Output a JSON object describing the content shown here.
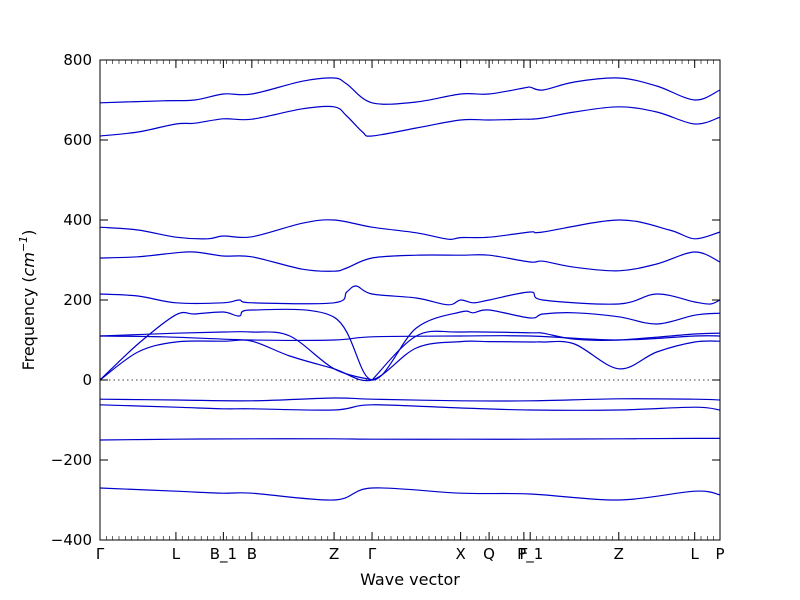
{
  "chart_data": {
    "type": "line",
    "title": "",
    "xlabel": "Wave vector",
    "ylabel_prefix": "Frequency (",
    "ylabel_math": "cm",
    "ylabel_exp": "−1",
    "ylabel_suffix": ")",
    "ylim": [
      -400,
      800
    ],
    "yticks": [
      -400,
      -200,
      0,
      200,
      400,
      600,
      800
    ],
    "xlim": [
      0,
      9.8
    ],
    "xticks": [
      {
        "pos": 0.0,
        "label": "Γ"
      },
      {
        "pos": 1.2,
        "label": "L"
      },
      {
        "pos": 1.95,
        "label": "B_1"
      },
      {
        "pos": 2.4,
        "label": "B"
      },
      {
        "pos": 3.7,
        "label": "Z"
      },
      {
        "pos": 4.3,
        "label": "Γ"
      },
      {
        "pos": 5.7,
        "label": "X"
      },
      {
        "pos": 6.15,
        "label": "Q"
      },
      {
        "pos": 6.7,
        "label": "F"
      },
      {
        "pos": 6.8,
        "label": "P_1"
      },
      {
        "pos": 8.2,
        "label": "Z"
      },
      {
        "pos": 9.4,
        "label": "L"
      },
      {
        "pos": 9.8,
        "label": "P"
      }
    ],
    "zero_line": true,
    "series": [
      {
        "values": [
          [
            0,
            693
          ],
          [
            1,
            698
          ],
          [
            1.5,
            700
          ],
          [
            1.95,
            715
          ],
          [
            2.4,
            715
          ],
          [
            3.2,
            747
          ],
          [
            3.7,
            755
          ],
          [
            3.9,
            740
          ],
          [
            4.3,
            693
          ],
          [
            5.0,
            695
          ],
          [
            5.7,
            715
          ],
          [
            6.15,
            715
          ],
          [
            6.7,
            730
          ],
          [
            6.8,
            732
          ],
          [
            7.0,
            725
          ],
          [
            7.5,
            745
          ],
          [
            8.2,
            755
          ],
          [
            8.8,
            735
          ],
          [
            9.4,
            700
          ],
          [
            9.8,
            725
          ]
        ]
      },
      {
        "values": [
          [
            0,
            610
          ],
          [
            0.6,
            620
          ],
          [
            1.2,
            640
          ],
          [
            1.5,
            642
          ],
          [
            1.95,
            653
          ],
          [
            2.4,
            652
          ],
          [
            3.2,
            678
          ],
          [
            3.7,
            683
          ],
          [
            3.9,
            660
          ],
          [
            4.15,
            620
          ],
          [
            4.3,
            610
          ],
          [
            5.0,
            630
          ],
          [
            5.7,
            650
          ],
          [
            6.15,
            650
          ],
          [
            6.7,
            652
          ],
          [
            6.8,
            652
          ],
          [
            7.0,
            655
          ],
          [
            7.5,
            670
          ],
          [
            8.2,
            683
          ],
          [
            8.8,
            670
          ],
          [
            9.4,
            640
          ],
          [
            9.8,
            657
          ]
        ]
      },
      {
        "values": [
          [
            0,
            382
          ],
          [
            0.6,
            375
          ],
          [
            1.2,
            357
          ],
          [
            1.7,
            353
          ],
          [
            1.95,
            360
          ],
          [
            2.4,
            358
          ],
          [
            3.2,
            392
          ],
          [
            3.7,
            400
          ],
          [
            4.3,
            382
          ],
          [
            5.0,
            368
          ],
          [
            5.5,
            352
          ],
          [
            5.7,
            356
          ],
          [
            6.15,
            357
          ],
          [
            6.8,
            370
          ],
          [
            7.0,
            370
          ],
          [
            8.2,
            400
          ],
          [
            9.0,
            375
          ],
          [
            9.4,
            353
          ],
          [
            9.8,
            370
          ]
        ]
      },
      {
        "values": [
          [
            0,
            305
          ],
          [
            0.6,
            308
          ],
          [
            1.2,
            318
          ],
          [
            1.5,
            320
          ],
          [
            1.95,
            310
          ],
          [
            2.4,
            308
          ],
          [
            3.2,
            277
          ],
          [
            3.7,
            272
          ],
          [
            3.9,
            280
          ],
          [
            4.3,
            305
          ],
          [
            5.0,
            312
          ],
          [
            5.7,
            312
          ],
          [
            6.15,
            312
          ],
          [
            6.8,
            295
          ],
          [
            7.0,
            297
          ],
          [
            7.5,
            282
          ],
          [
            8.2,
            273
          ],
          [
            8.8,
            290
          ],
          [
            9.4,
            320
          ],
          [
            9.8,
            295
          ]
        ]
      },
      {
        "values": [
          [
            0,
            215
          ],
          [
            0.6,
            210
          ],
          [
            1.2,
            193
          ],
          [
            1.95,
            193
          ],
          [
            2.2,
            200
          ],
          [
            2.4,
            193
          ],
          [
            3.7,
            193
          ],
          [
            3.9,
            220
          ],
          [
            4.05,
            235
          ],
          [
            4.3,
            215
          ],
          [
            5.0,
            205
          ],
          [
            5.5,
            188
          ],
          [
            5.7,
            200
          ],
          [
            5.9,
            193
          ],
          [
            6.15,
            200
          ],
          [
            6.8,
            220
          ],
          [
            7.0,
            200
          ],
          [
            8.2,
            190
          ],
          [
            8.8,
            215
          ],
          [
            9.4,
            195
          ],
          [
            9.65,
            190
          ],
          [
            9.8,
            200
          ]
        ]
      },
      {
        "values": [
          [
            0,
            0
          ],
          [
            0.6,
            90
          ],
          [
            1.2,
            163
          ],
          [
            1.5,
            165
          ],
          [
            1.95,
            170
          ],
          [
            2.2,
            160
          ],
          [
            2.4,
            175
          ],
          [
            3.7,
            157
          ],
          [
            4.3,
            0
          ],
          [
            5.0,
            130
          ],
          [
            5.7,
            170
          ],
          [
            5.9,
            168
          ],
          [
            6.15,
            175
          ],
          [
            6.8,
            155
          ],
          [
            7.0,
            165
          ],
          [
            7.5,
            168
          ],
          [
            8.2,
            158
          ],
          [
            8.8,
            140
          ],
          [
            9.4,
            162
          ],
          [
            9.8,
            167
          ]
        ]
      },
      {
        "values": [
          [
            0,
            0
          ],
          [
            0.6,
            70
          ],
          [
            1.2,
            95
          ],
          [
            1.95,
            97
          ],
          [
            2.4,
            97
          ],
          [
            3.0,
            60
          ],
          [
            3.7,
            28
          ],
          [
            4.3,
            0
          ],
          [
            5.0,
            80
          ],
          [
            5.7,
            96
          ],
          [
            6.15,
            96
          ],
          [
            6.8,
            95
          ],
          [
            7.0,
            95
          ],
          [
            7.5,
            90
          ],
          [
            8.2,
            28
          ],
          [
            8.8,
            70
          ],
          [
            9.4,
            95
          ],
          [
            9.8,
            97
          ]
        ]
      },
      {
        "values": [
          [
            0,
            110
          ],
          [
            1.2,
            117
          ],
          [
            1.95,
            120
          ],
          [
            2.4,
            120
          ],
          [
            3.0,
            110
          ],
          [
            3.7,
            28
          ],
          [
            4.3,
            0
          ]
        ]
      },
      {
        "values": [
          [
            4.3,
            0
          ],
          [
            5.0,
            110
          ],
          [
            5.7,
            120
          ],
          [
            6.8,
            118
          ],
          [
            7.0,
            117
          ],
          [
            7.5,
            102
          ],
          [
            8.2,
            100
          ],
          [
            9.4,
            115
          ],
          [
            9.8,
            117
          ]
        ]
      },
      {
        "values": [
          [
            0,
            110
          ],
          [
            1.0,
            108
          ],
          [
            2.4,
            100
          ],
          [
            3.7,
            100
          ],
          [
            4.3,
            108
          ],
          [
            5.7,
            110
          ],
          [
            6.8,
            110
          ],
          [
            8.2,
            100
          ],
          [
            9.4,
            110
          ],
          [
            9.8,
            110
          ]
        ]
      },
      {
        "values": [
          [
            0,
            -48
          ],
          [
            1.2,
            -50
          ],
          [
            2.4,
            -52
          ],
          [
            3.7,
            -45
          ],
          [
            4.3,
            -48
          ],
          [
            5.7,
            -52
          ],
          [
            6.8,
            -52
          ],
          [
            8.2,
            -47
          ],
          [
            9.4,
            -48
          ],
          [
            9.8,
            -50
          ]
        ]
      },
      {
        "values": [
          [
            0,
            -62
          ],
          [
            1.2,
            -68
          ],
          [
            1.95,
            -72
          ],
          [
            2.4,
            -72
          ],
          [
            3.7,
            -75
          ],
          [
            4.3,
            -62
          ],
          [
            5.7,
            -70
          ],
          [
            6.8,
            -75
          ],
          [
            8.2,
            -75
          ],
          [
            9.4,
            -68
          ],
          [
            9.8,
            -75
          ]
        ]
      },
      {
        "values": [
          [
            0,
            -150
          ],
          [
            1.2,
            -148
          ],
          [
            2.4,
            -147
          ],
          [
            3.7,
            -147
          ],
          [
            4.3,
            -148
          ],
          [
            5.7,
            -148
          ],
          [
            6.8,
            -148
          ],
          [
            8.2,
            -147
          ],
          [
            9.4,
            -146
          ],
          [
            9.8,
            -146
          ]
        ]
      },
      {
        "values": [
          [
            0,
            -270
          ],
          [
            1.2,
            -278
          ],
          [
            1.95,
            -283
          ],
          [
            2.4,
            -283
          ],
          [
            3.7,
            -300
          ],
          [
            4.3,
            -270
          ],
          [
            5.7,
            -283
          ],
          [
            6.8,
            -285
          ],
          [
            8.2,
            -300
          ],
          [
            9.4,
            -278
          ],
          [
            9.8,
            -287
          ]
        ]
      }
    ]
  }
}
